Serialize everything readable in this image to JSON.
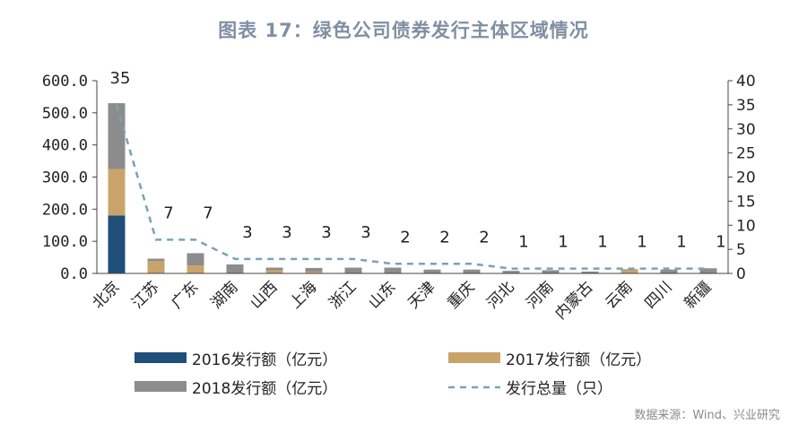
{
  "title": "图表 17：绿色公司债券发行主体区域情况",
  "source": "数据来源：Wind、兴业研究",
  "colors": {
    "s2016": "#1f4e79",
    "s2017": "#c9a46a",
    "s2018": "#8c8c8c",
    "line": "#7aa3b5",
    "axis": "#444444"
  },
  "chart_data": {
    "type": "bar",
    "stacked": true,
    "categories": [
      "北京",
      "江苏",
      "广东",
      "湖南",
      "山西",
      "上海",
      "浙江",
      "山东",
      "天津",
      "重庆",
      "河北",
      "河南",
      "内蒙古",
      "云南",
      "四川",
      "新疆"
    ],
    "series": [
      {
        "name": "2016发行额（亿元）",
        "values": [
          180,
          0,
          0,
          0,
          0,
          0,
          0,
          0,
          0,
          0,
          0,
          0,
          0,
          0,
          0,
          0
        ]
      },
      {
        "name": "2017发行额（亿元）",
        "values": [
          145,
          38,
          25,
          0,
          10,
          5,
          0,
          0,
          0,
          0,
          0,
          0,
          0,
          10,
          0,
          0
        ]
      },
      {
        "name": "2018发行额（亿元）",
        "values": [
          205,
          8,
          38,
          28,
          8,
          12,
          18,
          18,
          12,
          12,
          8,
          10,
          6,
          3,
          12,
          16
        ]
      }
    ],
    "line_series": {
      "name": "发行总量（只）",
      "values": [
        35,
        7,
        7,
        3,
        3,
        3,
        3,
        2,
        2,
        2,
        1,
        1,
        1,
        1,
        1,
        1
      ]
    },
    "line_labels": [
      "35",
      "7",
      "7",
      "3",
      "3",
      "3",
      "3",
      "2",
      "2",
      "2",
      "1",
      "1",
      "1",
      "1",
      "1",
      "1"
    ],
    "y_left": {
      "min": 0,
      "max": 600,
      "ticks": [
        "0.0",
        "100.0",
        "200.0",
        "300.0",
        "400.0",
        "500.0",
        "600.0"
      ],
      "tick_values": [
        0,
        100,
        200,
        300,
        400,
        500,
        600
      ]
    },
    "y_right": {
      "min": 0,
      "max": 40,
      "ticks": [
        "0",
        "5",
        "10",
        "15",
        "20",
        "25",
        "30",
        "35",
        "40"
      ],
      "tick_values": [
        0,
        5,
        10,
        15,
        20,
        25,
        30,
        35,
        40
      ]
    },
    "legend_position": "bottom"
  }
}
